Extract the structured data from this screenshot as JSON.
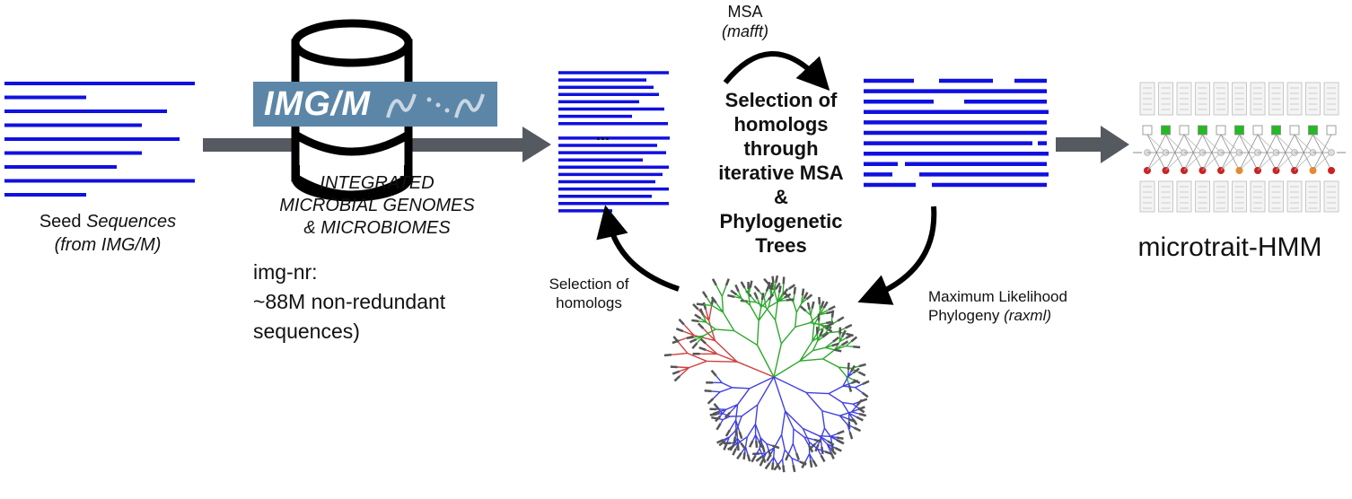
{
  "seed": {
    "line1_plain": "Seed ",
    "line1_italic": "Sequences",
    "line2": "(from IMG/M)"
  },
  "database": {
    "logo_text": "IMG/M",
    "full_name": [
      "INTEGRATED",
      "MICROBIAL GENOMES",
      "& MICROBIOMES"
    ],
    "nr_label": "img-nr:",
    "nr_desc": [
      "~88M non-redundant",
      "sequences)"
    ]
  },
  "msa": {
    "label": "MSA",
    "tool": "(mafft)"
  },
  "selection": {
    "lines": [
      "Selection of",
      "homologs",
      "through",
      "iterative MSA",
      "&",
      "Phylogenetic",
      "Trees"
    ]
  },
  "ellipsis": "...",
  "selection_homologs": {
    "lines": [
      "Selection of",
      "homologs"
    ]
  },
  "ml": {
    "line1": "Maximum Likelihood",
    "line2_plain": "Phylogeny ",
    "line2_italic": "(raxml)"
  },
  "hmm": {
    "label": "microtrait-HMM"
  },
  "colors": {
    "sequence_blue": "#1010e0",
    "arrow_gray": "#555a60",
    "logo_bg": "#5b86a8",
    "tree_green": "#2ea82e",
    "tree_red": "#d04040",
    "tree_blue": "#4040e0",
    "tree_gray": "#555555",
    "hmm_green": "#22bb22",
    "hmm_red": "#cc2222",
    "hmm_orange": "#ee8822"
  }
}
